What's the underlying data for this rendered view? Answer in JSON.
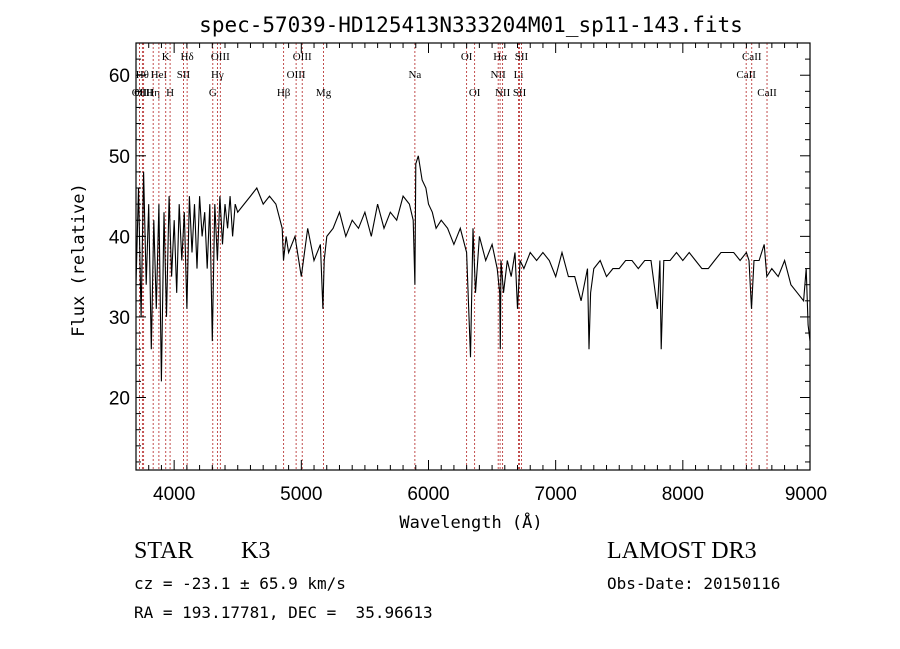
{
  "chart_data": {
    "type": "line",
    "title": "spec-57039-HD125413N333204M01_sp11-143.fits",
    "xlabel": "Wavelength (Å)",
    "ylabel": "Flux (relative)",
    "xlim": [
      3700,
      9000
    ],
    "ylim": [
      11,
      64
    ],
    "xticks": [
      4000,
      5000,
      6000,
      7000,
      8000,
      9000
    ],
    "yticks": [
      20,
      30,
      40,
      50,
      60
    ],
    "series": [
      {
        "name": "flux",
        "color": "#000000",
        "x": [
          3700,
          3720,
          3740,
          3760,
          3780,
          3800,
          3820,
          3840,
          3860,
          3880,
          3900,
          3920,
          3940,
          3960,
          3980,
          4000,
          4020,
          4040,
          4060,
          4080,
          4100,
          4120,
          4140,
          4160,
          4180,
          4200,
          4220,
          4240,
          4260,
          4280,
          4300,
          4320,
          4340,
          4360,
          4380,
          4400,
          4420,
          4440,
          4460,
          4480,
          4500,
          4550,
          4600,
          4650,
          4700,
          4750,
          4800,
          4850,
          4860,
          4880,
          4900,
          4950,
          5000,
          5050,
          5100,
          5150,
          5170,
          5180,
          5200,
          5250,
          5300,
          5350,
          5400,
          5450,
          5500,
          5550,
          5600,
          5650,
          5700,
          5750,
          5800,
          5850,
          5880,
          5893,
          5900,
          5920,
          5950,
          5980,
          6000,
          6030,
          6060,
          6100,
          6150,
          6200,
          6250,
          6300,
          6330,
          6350,
          6370,
          6400,
          6450,
          6500,
          6540,
          6560,
          6565,
          6570,
          6590,
          6620,
          6650,
          6680,
          6700,
          6720,
          6750,
          6800,
          6850,
          6900,
          6950,
          7000,
          7050,
          7100,
          7150,
          7200,
          7250,
          7262,
          7275,
          7300,
          7350,
          7400,
          7450,
          7500,
          7550,
          7600,
          7650,
          7700,
          7750,
          7800,
          7820,
          7830,
          7850,
          7900,
          7950,
          8000,
          8050,
          8100,
          8150,
          8200,
          8250,
          8300,
          8350,
          8400,
          8450,
          8500,
          8520,
          8540,
          8560,
          8600,
          8640,
          8660,
          8700,
          8750,
          8800,
          8850,
          8900,
          8950,
          8970,
          8985,
          9000
        ],
        "y": [
          34,
          46,
          30,
          48,
          34,
          44,
          26,
          42,
          31,
          44,
          22,
          43,
          30,
          45,
          35,
          42,
          33,
          44,
          37,
          43,
          31,
          45,
          38,
          44,
          36,
          45,
          40,
          43,
          36,
          44,
          27,
          44,
          37,
          45,
          39,
          44,
          41,
          45,
          40,
          44,
          43,
          44,
          45,
          46,
          44,
          45,
          44,
          41,
          37,
          40,
          38,
          40,
          35,
          41,
          37,
          39,
          31,
          37,
          40,
          41,
          43,
          40,
          42,
          41,
          43,
          40,
          44,
          41,
          43,
          42,
          45,
          44,
          42,
          34,
          49,
          50,
          47,
          46,
          44,
          43,
          41,
          42,
          41,
          39,
          41,
          38,
          25,
          41,
          33,
          40,
          37,
          39,
          36,
          33,
          26,
          37,
          33,
          37,
          35,
          38,
          31,
          37,
          36,
          38,
          37,
          38,
          37,
          35,
          38,
          35,
          35,
          32,
          36,
          26,
          33,
          36,
          37,
          35,
          36,
          36,
          37,
          37,
          36,
          37,
          37,
          31,
          37,
          26,
          37,
          37,
          38,
          37,
          38,
          37,
          36,
          36,
          37,
          38,
          38,
          38,
          37,
          38,
          37,
          31,
          37,
          37,
          39,
          35,
          36,
          35,
          37,
          34,
          33,
          32,
          36,
          29,
          27
        ]
      }
    ],
    "line_markers": [
      {
        "label": "OII",
        "x": 3727,
        "row": 2
      },
      {
        "label": "Hθ",
        "x": 3750,
        "row": 1
      },
      {
        "label": "OIII",
        "x": 3760,
        "row": 2
      },
      {
        "label": "Hη",
        "x": 3835,
        "row": 2
      },
      {
        "label": "HeI",
        "x": 3880,
        "row": 1
      },
      {
        "label": "K",
        "x": 3934,
        "row": 0
      },
      {
        "label": "H",
        "x": 3968,
        "row": 2
      },
      {
        "label": "SII",
        "x": 4073,
        "row": 1
      },
      {
        "label": "Hδ",
        "x": 4102,
        "row": 0
      },
      {
        "label": "G",
        "x": 4304,
        "row": 2
      },
      {
        "label": "Hγ",
        "x": 4340,
        "row": 1
      },
      {
        "label": "OIII",
        "x": 4363,
        "row": 0
      },
      {
        "label": "Hβ",
        "x": 4861,
        "row": 2
      },
      {
        "label": "OIII",
        "x": 4959,
        "row": 1
      },
      {
        "label": "OIII",
        "x": 5007,
        "row": 0
      },
      {
        "label": "Mg",
        "x": 5175,
        "row": 2
      },
      {
        "label": "Na",
        "x": 5893,
        "row": 1
      },
      {
        "label": "OI",
        "x": 6300,
        "row": 0
      },
      {
        "label": "OI",
        "x": 6363,
        "row": 2
      },
      {
        "label": "NII",
        "x": 6548,
        "row": 1
      },
      {
        "label": "Hα",
        "x": 6563,
        "row": 0
      },
      {
        "label": "NII",
        "x": 6583,
        "row": 2
      },
      {
        "label": "SII",
        "x": 6716,
        "row": 2
      },
      {
        "label": "Li",
        "x": 6708,
        "row": 1
      },
      {
        "label": "SII",
        "x": 6731,
        "row": 0
      },
      {
        "label": "CaII",
        "x": 8498,
        "row": 1
      },
      {
        "label": "CaII",
        "x": 8542,
        "row": 0
      },
      {
        "label": "CaII",
        "x": 8662,
        "row": 2
      }
    ]
  },
  "info": {
    "class_type": "STAR",
    "subclass": "K3",
    "survey": "LAMOST DR3",
    "redshift": "cz = -23.1 ± 65.9 km/s",
    "obs_date": "Obs-Date: 20150116",
    "coords": "RA = 193.17781, DEC =  35.96613"
  }
}
